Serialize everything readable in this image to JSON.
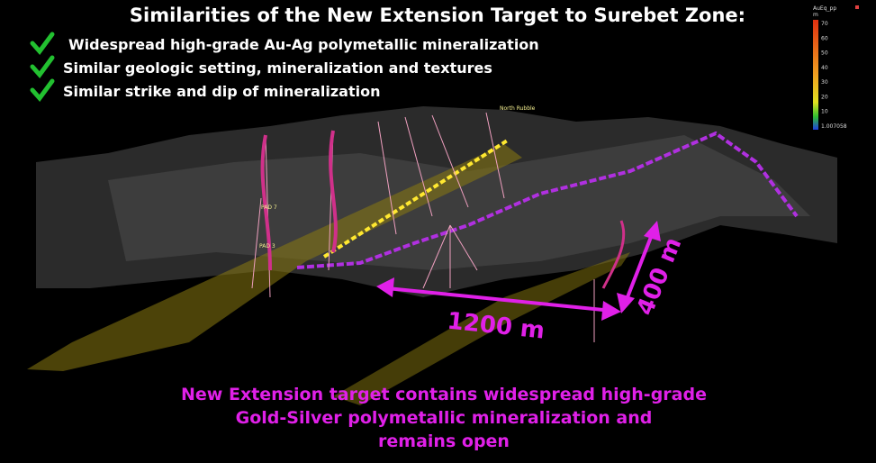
{
  "header": {
    "title": "Similarities of the New Extension Target to Surebet Zone:"
  },
  "similarities": [
    "Widespread high-grade Au-Ag polymetallic mineralization",
    "Similar geologic setting, mineralization and textures",
    "Similar strike and dip of mineralization"
  ],
  "legend": {
    "title": [
      "AuEq_pp",
      "m"
    ],
    "labels": [
      "70",
      "60",
      "50",
      "40",
      "30",
      "20",
      "10",
      "1.007058"
    ]
  },
  "model_labels": [
    "PAD 3",
    "PAD 7",
    "North Rubble"
  ],
  "dimensions": {
    "horizontal": "1200 m",
    "vertical": "400 m"
  },
  "footer": [
    "New Extension target contains widespread high-grade",
    "Gold-Silver polymetallic mineralization and",
    "remains open"
  ]
}
